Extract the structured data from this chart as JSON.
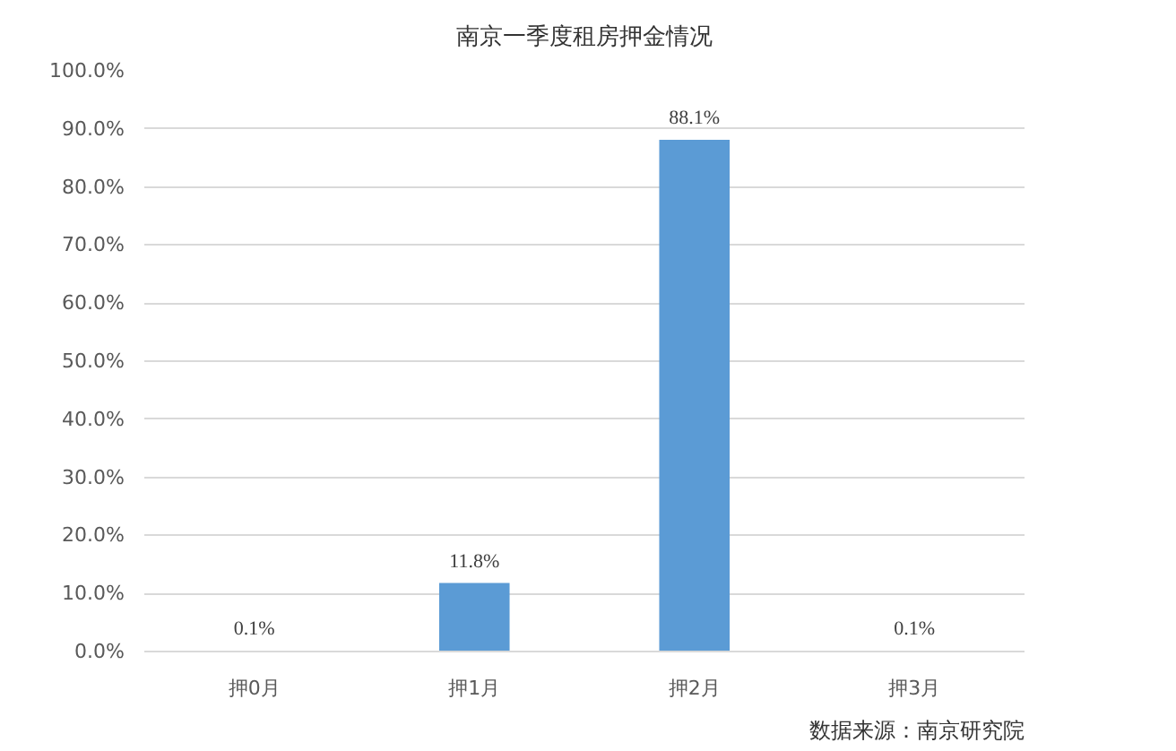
{
  "chart_data": {
    "type": "bar",
    "title": "南京一季度租房押金情况",
    "categories": [
      "押0月",
      "押1月",
      "押2月",
      "押3月"
    ],
    "values": [
      0.1,
      11.8,
      88.1,
      0.1
    ],
    "value_labels": [
      "0.1%",
      "11.8%",
      "88.1%",
      "0.1%"
    ],
    "color": "#5b9bd5",
    "ylim": [
      0,
      100
    ],
    "yticks": [
      {
        "value": 0,
        "label": "0.0%"
      },
      {
        "value": 10,
        "label": "10.0%"
      },
      {
        "value": 20,
        "label": "20.0%"
      },
      {
        "value": 30,
        "label": "30.0%"
      },
      {
        "value": 40,
        "label": "40.0%"
      },
      {
        "value": 50,
        "label": "50.0%"
      },
      {
        "value": 60,
        "label": "60.0%"
      },
      {
        "value": 70,
        "label": "70.0%"
      },
      {
        "value": 80,
        "label": "80.0%"
      },
      {
        "value": 90,
        "label": "90.0%"
      },
      {
        "value": 100,
        "label": "100.0%"
      }
    ],
    "grid": "y",
    "annotations": [
      "数据来源：南京研究院"
    ]
  }
}
